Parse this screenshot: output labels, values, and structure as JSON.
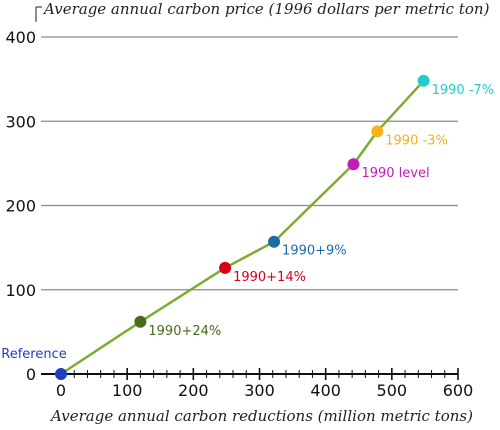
{
  "chart_data": {
    "type": "line",
    "title": "",
    "ylabel": "Average annual carbon price (1996 dollars per metric ton)",
    "xlabel": "Average annual carbon reductions (million metric tons)",
    "xlim": [
      0,
      600
    ],
    "ylim": [
      0,
      400
    ],
    "x_ticks": [
      "0",
      "100",
      "200",
      "300",
      "400",
      "500",
      "600"
    ],
    "y_ticks": [
      "0",
      "100",
      "200",
      "300",
      "400"
    ],
    "grid": "horizontal",
    "line_color": "#7aad32",
    "points": [
      {
        "label": "Reference",
        "x": 0,
        "y": 0,
        "color": "#1f3fbf"
      },
      {
        "label": "1990+24%",
        "x": 120,
        "y": 62,
        "color": "#4a6a1e"
      },
      {
        "label": "1990+14%",
        "x": 248,
        "y": 126,
        "color": "#d9001b"
      },
      {
        "label": "1990+9%",
        "x": 322,
        "y": 157,
        "color": "#1c6ca8"
      },
      {
        "label": "1990 level",
        "x": 442,
        "y": 249,
        "color": "#c21cba"
      },
      {
        "label": "1990 -3%",
        "x": 478,
        "y": 288,
        "color": "#f5b21a"
      },
      {
        "label": "1990 -7%",
        "x": 548,
        "y": 348,
        "color": "#22cccc"
      }
    ]
  }
}
